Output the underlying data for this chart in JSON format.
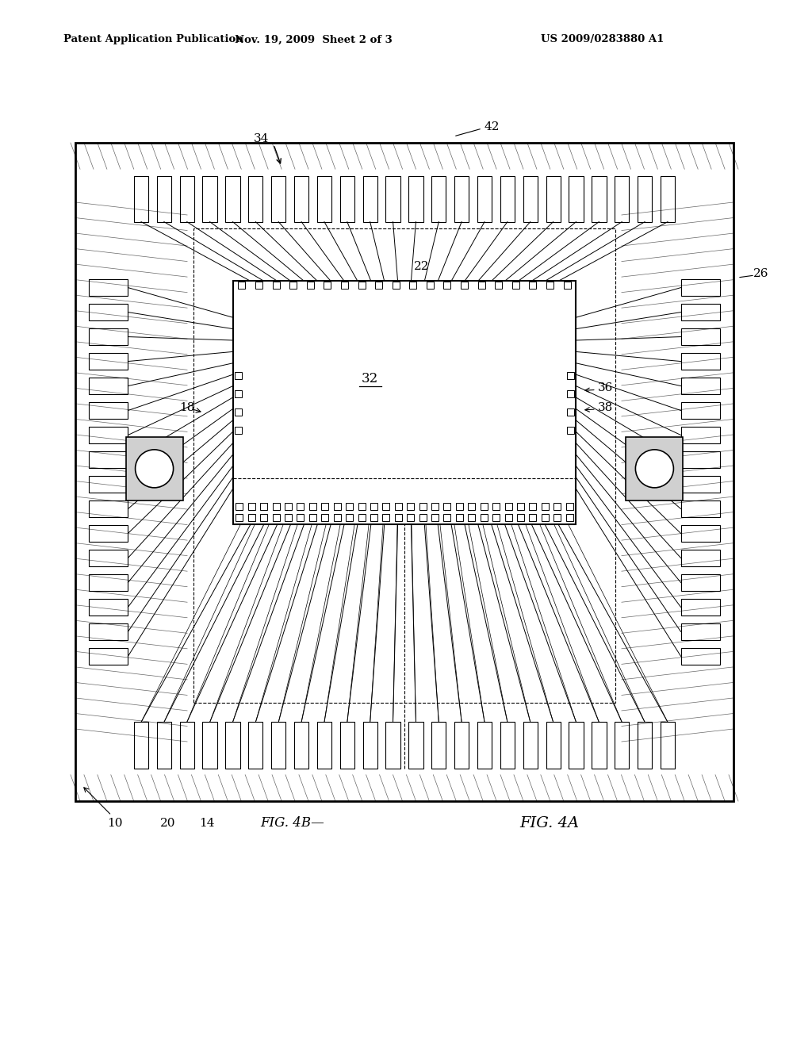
{
  "bg_color": "#ffffff",
  "line_color": "#000000",
  "header_text": "Patent Application Publication",
  "header_date": "Nov. 19, 2009  Sheet 2 of 3",
  "header_patent": "US 2009/0283880 A1"
}
